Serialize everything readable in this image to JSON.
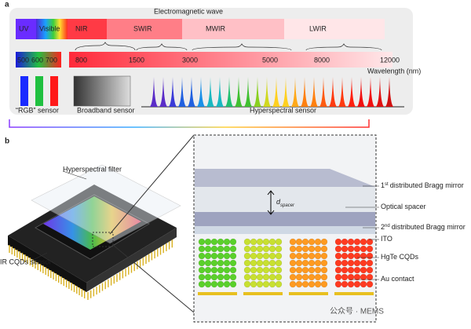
{
  "panel_a": {
    "label": "a",
    "title": "Electromagnetic wave",
    "bands": [
      "UV",
      "Visible",
      "NIR",
      "SWIR",
      "MWIR",
      "LWIR"
    ],
    "wavelength_ticks": [
      "500",
      "600",
      "700",
      "800",
      "1500",
      "3000",
      "5000",
      "8000",
      "12000"
    ],
    "axis_label": "Wavelength (nm)",
    "sensors": [
      "“RGB” sensor",
      "Broadband sensor",
      "Hyperspectral sensor"
    ]
  },
  "panel_b": {
    "label": "b",
    "filter_label": "Hyperspectral filter",
    "sensor_label": "IR CQDs sensor",
    "spacer_symbol": "d",
    "spacer_subscript": "spacer",
    "layers": [
      {
        "number": "1",
        "suffix": "st",
        "text": "distributed Bragg mirror"
      },
      {
        "text": "Optical spacer"
      },
      {
        "number": "2",
        "suffix": "nd",
        "text": "distributed Bragg mirror"
      },
      {
        "text": "ITO"
      },
      {
        "text": "HgTe CQDs"
      },
      {
        "text": "Au contact"
      }
    ]
  },
  "watermark": "公众号 · MEMS"
}
